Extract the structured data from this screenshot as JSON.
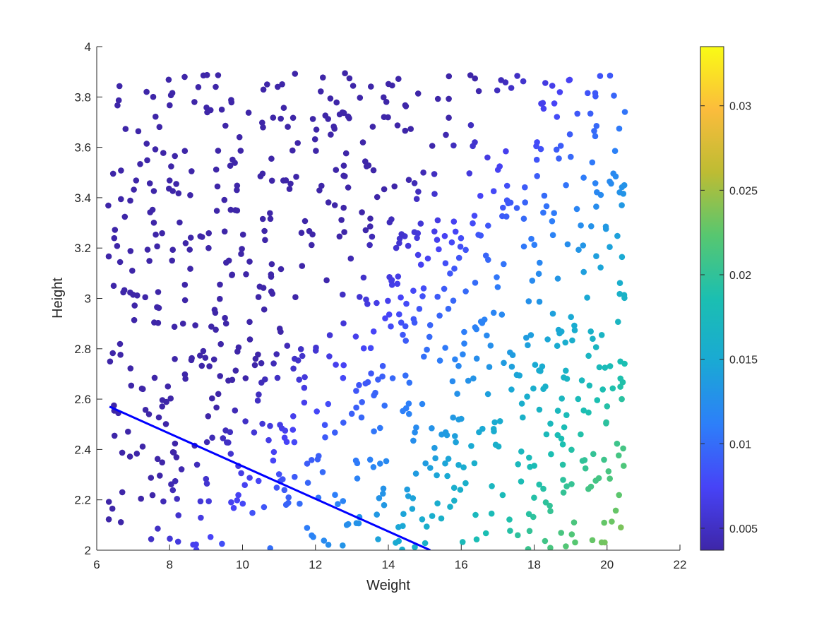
{
  "chart_data": {
    "type": "scatter",
    "title": "",
    "xlabel": "Weight",
    "ylabel": "Height",
    "xlim": [
      6,
      22
    ],
    "ylim": [
      2,
      4
    ],
    "xticks": [
      "6",
      "8",
      "10",
      "12",
      "14",
      "16",
      "18",
      "20",
      "22"
    ],
    "yticks": [
      "2",
      "2.2",
      "2.4",
      "2.6",
      "2.8",
      "3",
      "3.2",
      "3.4",
      "3.6",
      "3.8",
      "4"
    ],
    "colormap": "parula",
    "color_range": [
      0.0037,
      0.0335
    ],
    "colorbar_ticks": [
      "0.005",
      "0.01",
      "0.015",
      "0.02",
      "0.025",
      "0.03"
    ],
    "colorbar_tick_values": [
      0.005,
      0.01,
      0.015,
      0.02,
      0.025,
      0.03
    ],
    "color_value_model": {
      "description": "marker color value ≈ 0.0037 + 0.001467*(x-6.3) - 0.00805*(y-2)",
      "intercept": 0.0037,
      "x_coef": 0.001467,
      "x_offset": 6.3,
      "y_coef": -0.00805
    },
    "decision_line": {
      "x": [
        6.35,
        15.15
      ],
      "y": [
        2.57,
        2.0
      ],
      "color": "#0000ff"
    },
    "grid": false,
    "legend": "none",
    "points": {
      "count": 900,
      "x_range": [
        6.3,
        20.5
      ],
      "y_range": [
        2.0,
        3.9
      ]
    }
  }
}
